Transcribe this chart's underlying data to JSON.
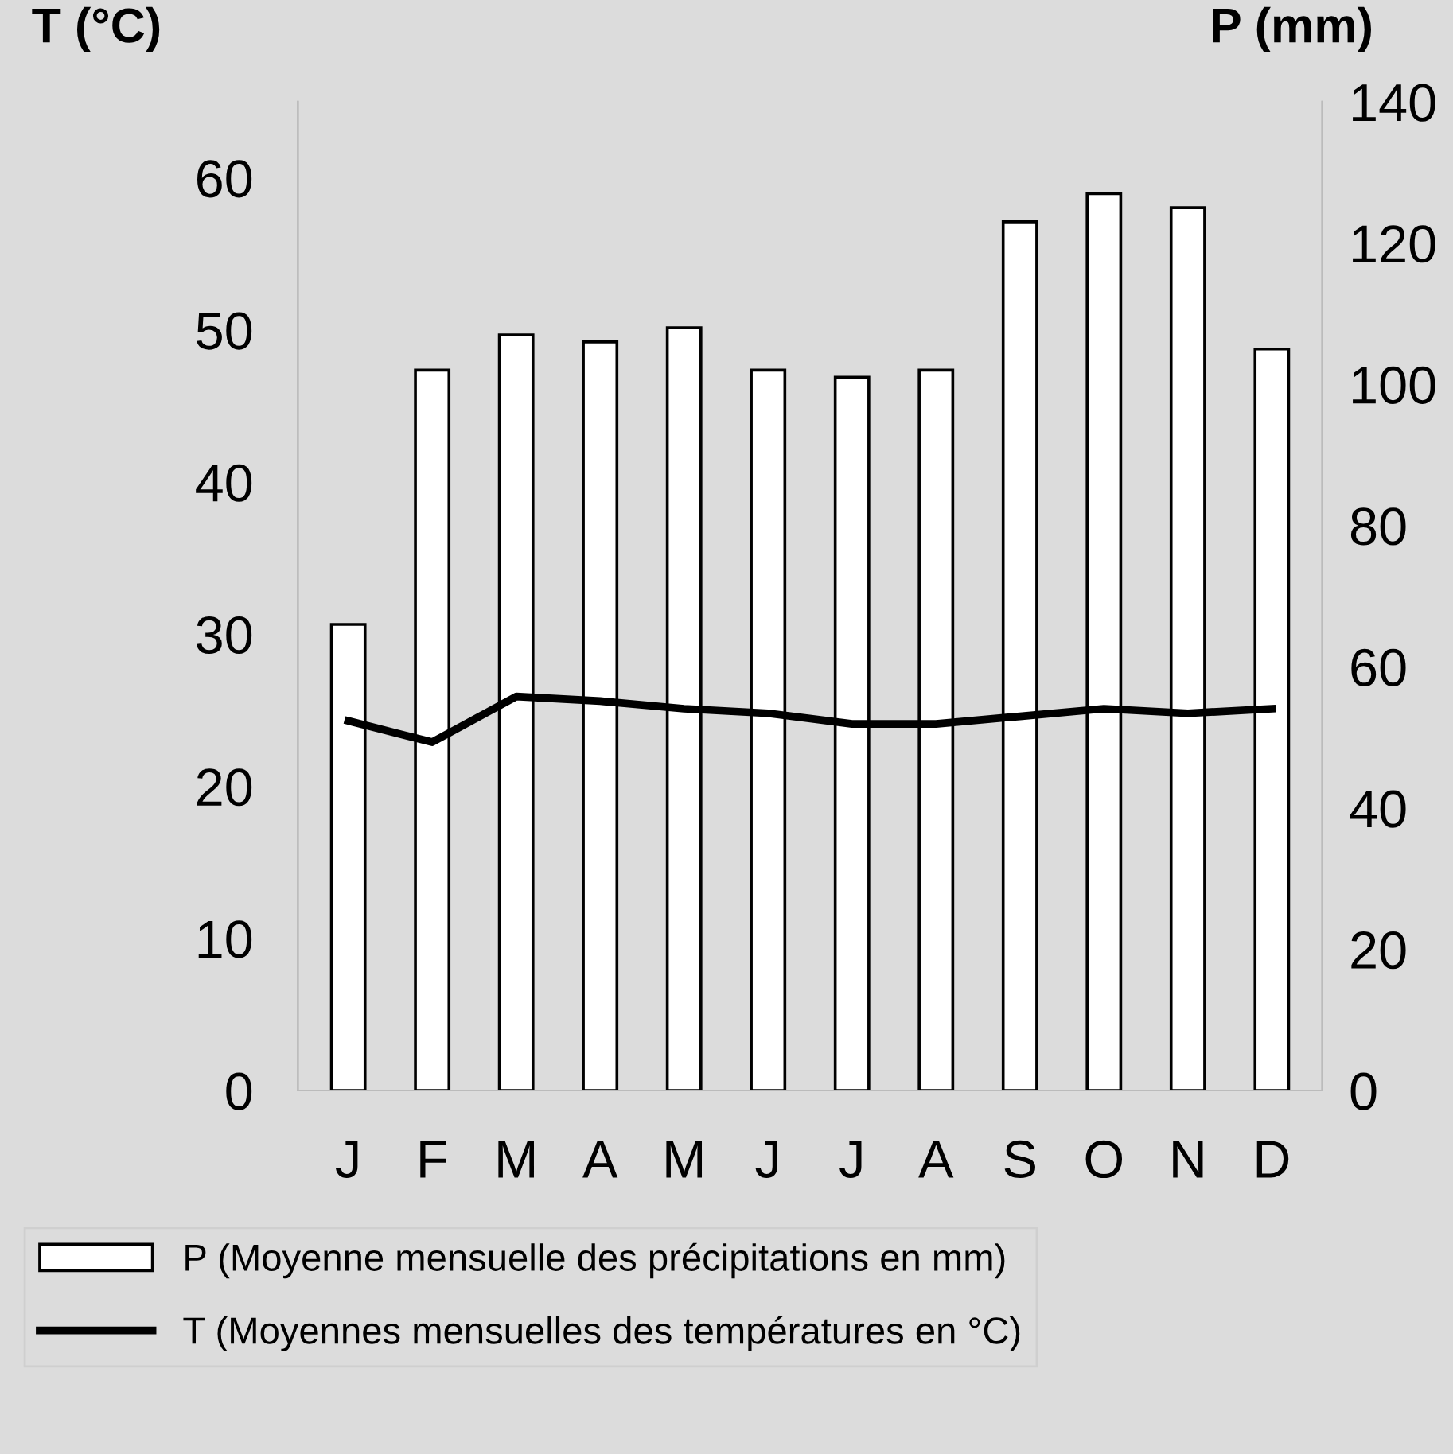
{
  "chart_data": {
    "type": "bar",
    "ylabel": "T (°C)",
    "y2label": "P (mm)",
    "categories": [
      "J",
      "F",
      "M",
      "A",
      "M",
      "J",
      "J",
      "A",
      "S",
      "O",
      "N",
      "D"
    ],
    "series": [
      {
        "name": "P (Moyenne mensuelle des précipitations en mm)",
        "axis": "y2",
        "color": "#ffffff",
        "values": [
          66,
          102,
          107,
          106,
          108,
          102,
          101,
          102,
          123,
          127,
          125,
          105
        ]
      },
      {
        "name": "T (Moyennes mensuelles des températures en °C)",
        "type": "line",
        "axis": "y",
        "color": "#000000",
        "values": [
          24.3,
          22.9,
          25.9,
          25.6,
          25.1,
          24.8,
          24.1,
          24.1,
          24.6,
          25.1,
          24.8,
          25.1
        ]
      }
    ],
    "ylim": [
      0,
      65
    ],
    "yticks": [
      0,
      10,
      20,
      30,
      40,
      50,
      60
    ],
    "y2lim": [
      0,
      140
    ],
    "y2ticks": [
      0,
      20,
      40,
      60,
      80,
      100,
      120,
      140
    ],
    "legend": "bottom",
    "grid": false,
    "marker": "none",
    "line_style": "solid"
  }
}
